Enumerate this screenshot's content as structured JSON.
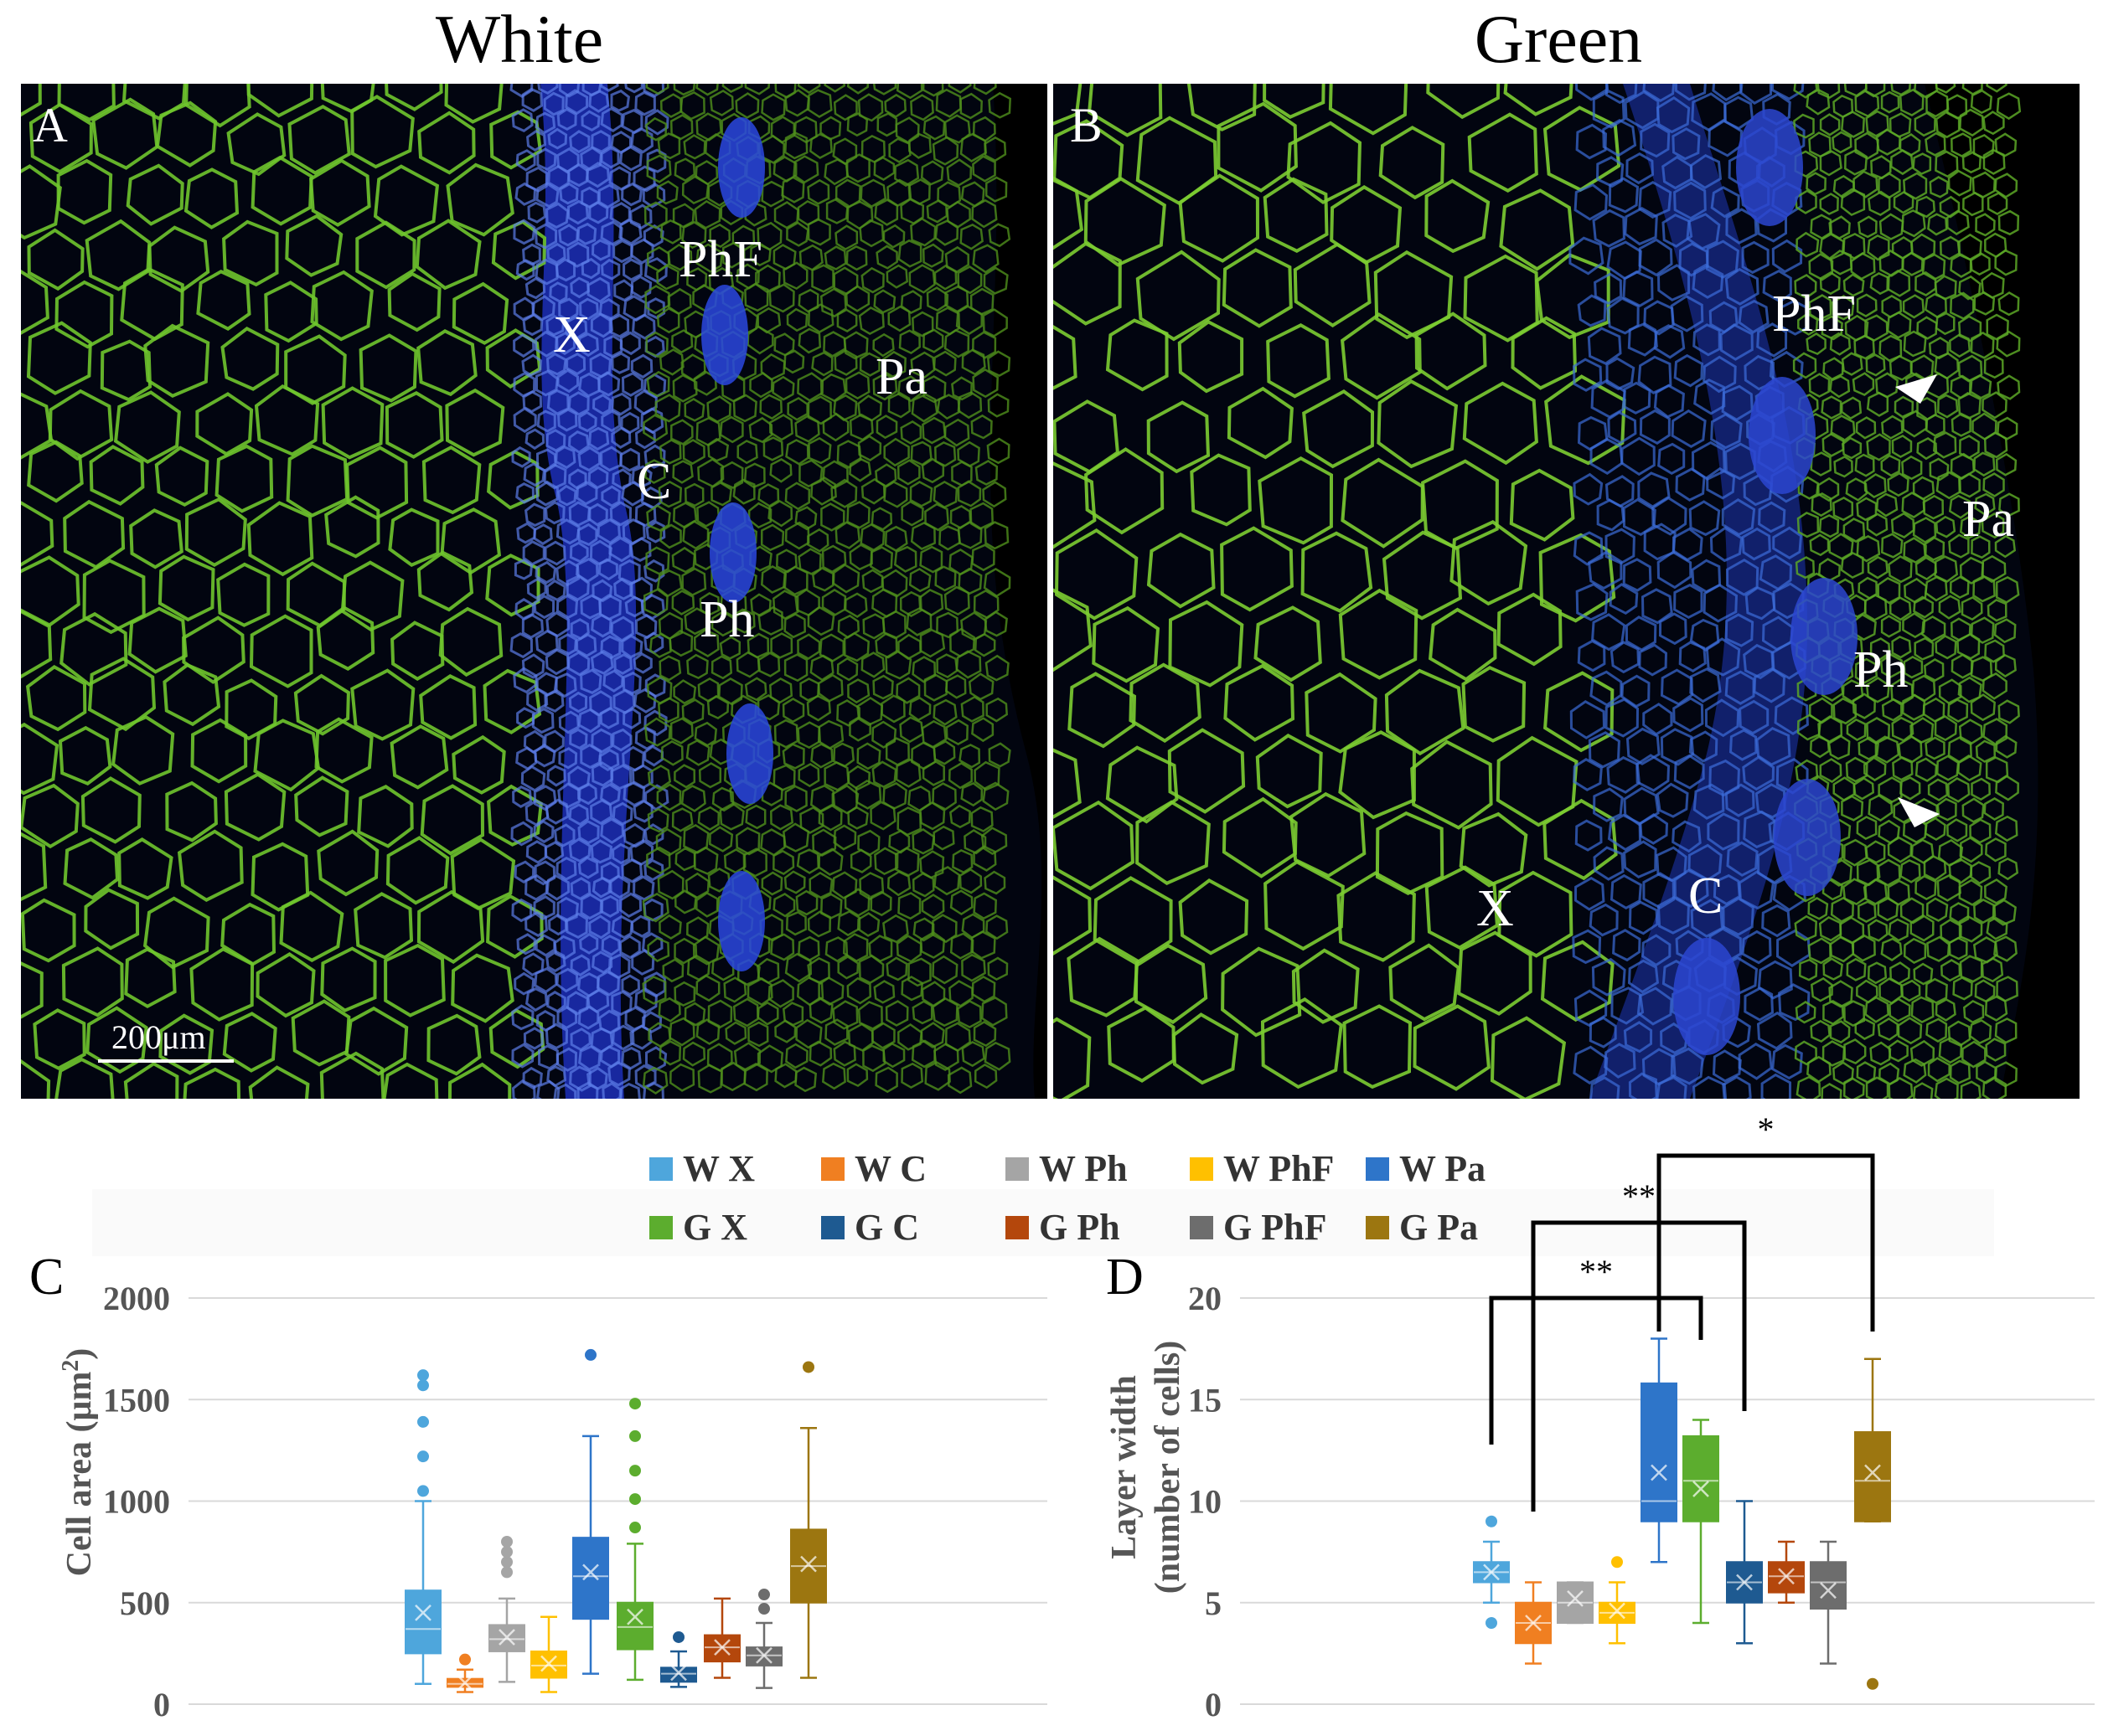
{
  "titles": {
    "white": "White",
    "green": "Green"
  },
  "micrographs": {
    "a": {
      "letter": "A",
      "labels": {
        "X": "X",
        "PhF": "PhF",
        "Pa": "Pa",
        "C": "C",
        "Ph": "Ph"
      },
      "scale_bar_text": "200μm"
    },
    "b": {
      "letter": "B",
      "labels": {
        "PhF": "PhF",
        "Pa": "Pa",
        "Ph": "Ph",
        "X": "X",
        "C": "C"
      }
    }
  },
  "legend": [
    {
      "label": "W X",
      "color": "#4ea6dc"
    },
    {
      "label": "W C",
      "color": "#f07f21"
    },
    {
      "label": "W Ph",
      "color": "#a5a5a5"
    },
    {
      "label": "W PhF",
      "color": "#ffc000"
    },
    {
      "label": "W Pa",
      "color": "#2e75c9"
    },
    {
      "label": "G X",
      "color": "#5cad2e"
    },
    {
      "label": "G C",
      "color": "#1e5a91"
    },
    {
      "label": "G Ph",
      "color": "#b4470c"
    },
    {
      "label": "G PhF",
      "color": "#6d6d6d"
    },
    {
      "label": "G Pa",
      "color": "#9c7610"
    }
  ],
  "chart_data": [
    {
      "panel": "C",
      "type": "box",
      "ylabel_line1": "Cell area (μm",
      "ylabel_sup": "2",
      "ylabel_line2": ")",
      "ylim": [
        0,
        2000
      ],
      "yticks": [
        "0",
        "500",
        "1000",
        "1500",
        "2000"
      ],
      "tick_values": [
        0,
        500,
        1000,
        1500,
        2000
      ],
      "series": [
        {
          "name": "W X",
          "min": 100,
          "q1": 250,
          "median": 370,
          "q3": 560,
          "max": 1000,
          "mean": 450,
          "outliers": [
            1050,
            1220,
            1390,
            1570,
            1620
          ]
        },
        {
          "name": "W C",
          "min": 60,
          "q1": 85,
          "median": 100,
          "q3": 125,
          "max": 170,
          "mean": 105,
          "outliers": [
            220
          ]
        },
        {
          "name": "W Ph",
          "min": 110,
          "q1": 260,
          "median": 320,
          "q3": 390,
          "max": 520,
          "mean": 330,
          "outliers": [
            650,
            700,
            750,
            800
          ]
        },
        {
          "name": "W PhF",
          "min": 60,
          "q1": 130,
          "median": 190,
          "q3": 260,
          "max": 430,
          "mean": 200,
          "outliers": []
        },
        {
          "name": "W Pa",
          "min": 150,
          "q1": 420,
          "median": 630,
          "q3": 820,
          "max": 1320,
          "mean": 650,
          "outliers": [
            1720
          ]
        },
        {
          "name": "G X",
          "min": 120,
          "q1": 270,
          "median": 380,
          "q3": 500,
          "max": 790,
          "mean": 430,
          "outliers": [
            870,
            1010,
            1150,
            1320,
            1480
          ]
        },
        {
          "name": "G C",
          "min": 85,
          "q1": 110,
          "median": 150,
          "q3": 180,
          "max": 260,
          "mean": 155,
          "outliers": [
            330
          ]
        },
        {
          "name": "G Ph",
          "min": 130,
          "q1": 210,
          "median": 280,
          "q3": 340,
          "max": 520,
          "mean": 280,
          "outliers": []
        },
        {
          "name": "G PhF",
          "min": 80,
          "q1": 190,
          "median": 240,
          "q3": 280,
          "max": 400,
          "mean": 240,
          "outliers": [
            470,
            540
          ]
        },
        {
          "name": "G Pa",
          "min": 130,
          "q1": 500,
          "median": 680,
          "q3": 860,
          "max": 1360,
          "mean": 690,
          "outliers": [
            1660
          ]
        }
      ]
    },
    {
      "panel": "D",
      "type": "box",
      "ylabel_line1": "Layer width",
      "ylabel_line2": "(number of cells)",
      "ylim": [
        0,
        20
      ],
      "yticks": [
        "0",
        "5",
        "10",
        "15",
        "20"
      ],
      "tick_values": [
        0,
        5,
        10,
        15,
        20
      ],
      "series": [
        {
          "name": "W X",
          "min": 5,
          "q1": 6,
          "median": 6.5,
          "q3": 7,
          "max": 8,
          "mean": 6.5,
          "outliers": [
            4,
            9
          ]
        },
        {
          "name": "W C",
          "min": 2,
          "q1": 3,
          "median": 4,
          "q3": 5,
          "max": 6,
          "mean": 4,
          "outliers": []
        },
        {
          "name": "W Ph",
          "min": 4,
          "q1": 4,
          "median": 5,
          "q3": 6,
          "max": 6,
          "mean": 5.2,
          "outliers": []
        },
        {
          "name": "W PhF",
          "min": 3,
          "q1": 4,
          "median": 4.5,
          "q3": 5,
          "max": 6,
          "mean": 4.6,
          "outliers": [
            7
          ]
        },
        {
          "name": "W Pa",
          "min": 7,
          "q1": 9,
          "median": 10,
          "q3": 15.8,
          "max": 18,
          "mean": 11.4,
          "outliers": []
        },
        {
          "name": "G X",
          "min": 4,
          "q1": 9,
          "median": 11,
          "q3": 13.2,
          "max": 14,
          "mean": 10.6,
          "outliers": []
        },
        {
          "name": "G C",
          "min": 3,
          "q1": 5,
          "median": 6,
          "q3": 7,
          "max": 10,
          "mean": 6,
          "outliers": []
        },
        {
          "name": "G Ph",
          "min": 5,
          "q1": 5.5,
          "median": 6.3,
          "q3": 7,
          "max": 8,
          "mean": 6.3,
          "outliers": []
        },
        {
          "name": "G PhF",
          "min": 2,
          "q1": 4.7,
          "median": 6,
          "q3": 7,
          "max": 8,
          "mean": 5.6,
          "outliers": []
        },
        {
          "name": "G Pa",
          "min": 9,
          "q1": 9,
          "median": 11,
          "q3": 13.4,
          "max": 17,
          "mean": 11.4,
          "outliers": [
            1
          ]
        }
      ],
      "significance": [
        {
          "from": "W X",
          "to": "G X",
          "label": "**"
        },
        {
          "from": "W C",
          "to": "G C",
          "label": "**"
        },
        {
          "from": "W Pa",
          "to": "G Pa",
          "label": "*"
        }
      ]
    }
  ]
}
